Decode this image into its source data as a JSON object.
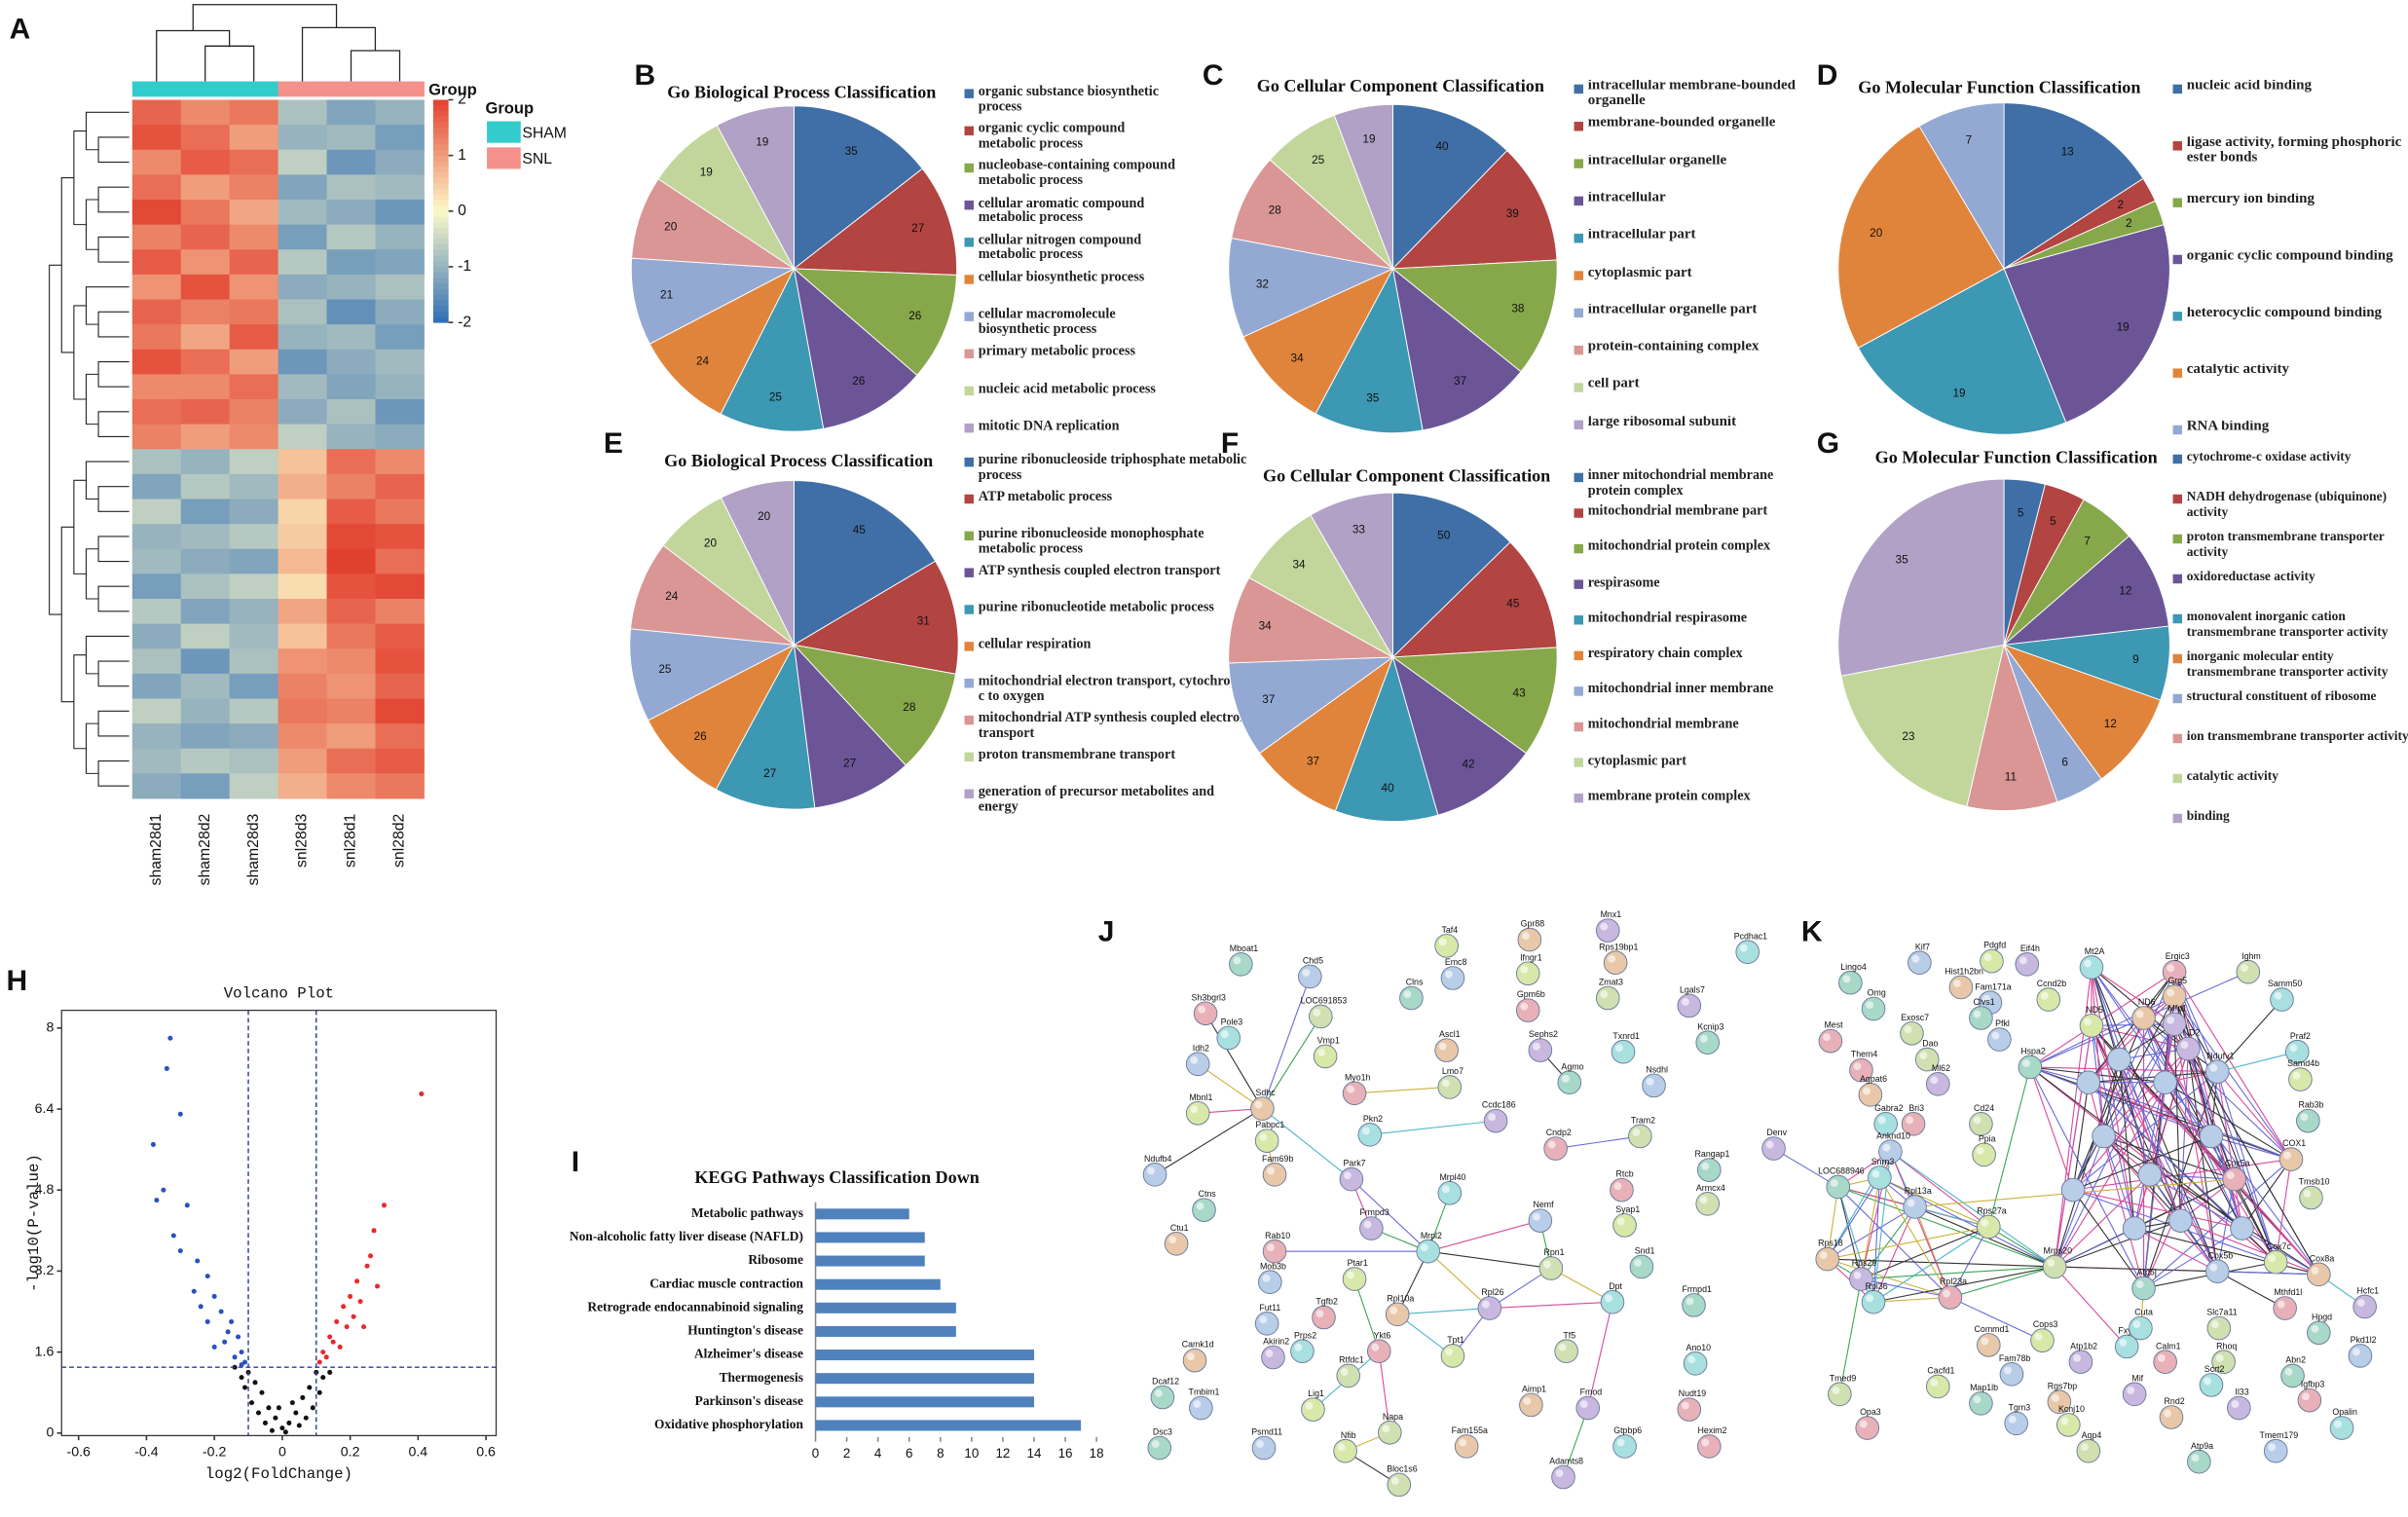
{
  "chart_data": [
    {
      "label": "A",
      "type": "heatmap",
      "colorbar_title": "Group",
      "legend_title": "Group",
      "groups": [
        {
          "name": "SHAM",
          "color": "#33cccc"
        },
        {
          "name": "SNL",
          "color": "#f4918a"
        }
      ],
      "column_groups": [
        0,
        0,
        0,
        1,
        1,
        1
      ],
      "columns": [
        "sham28d1",
        "sham28d2",
        "sham28d3",
        "snl28d3",
        "snl28d1",
        "snl28d2"
      ],
      "colormap": [
        "#2f6db4",
        "#fdf9c8",
        "#e2402f"
      ],
      "zlim": [
        -2,
        2
      ],
      "zticks": [
        2,
        1,
        0,
        -1,
        -2
      ],
      "values": [
        [
          1.6,
          1.2,
          1.4,
          -0.8,
          -1.2,
          -1.0
        ],
        [
          1.8,
          1.5,
          1.0,
          -1.0,
          -0.9,
          -1.3
        ],
        [
          1.2,
          1.7,
          1.5,
          -0.6,
          -1.4,
          -1.1
        ],
        [
          1.5,
          1.0,
          1.3,
          -1.2,
          -0.8,
          -0.9
        ],
        [
          1.9,
          1.4,
          0.9,
          -0.9,
          -1.1,
          -1.4
        ],
        [
          1.3,
          1.6,
          1.2,
          -1.3,
          -0.7,
          -1.0
        ],
        [
          1.7,
          1.1,
          1.6,
          -0.7,
          -1.3,
          -1.2
        ],
        [
          1.1,
          1.8,
          1.1,
          -1.1,
          -1.0,
          -0.8
        ],
        [
          1.6,
          1.3,
          1.4,
          -0.8,
          -1.5,
          -1.1
        ],
        [
          1.4,
          0.9,
          1.7,
          -1.0,
          -0.9,
          -1.3
        ],
        [
          1.8,
          1.5,
          1.0,
          -1.4,
          -1.1,
          -0.9
        ],
        [
          1.2,
          1.2,
          1.5,
          -0.9,
          -1.2,
          -1.0
        ],
        [
          1.5,
          1.6,
          1.3,
          -1.1,
          -0.8,
          -1.4
        ],
        [
          1.3,
          1.0,
          1.2,
          -0.6,
          -1.0,
          -1.1
        ],
        [
          -0.8,
          -1.0,
          -0.6,
          0.6,
          1.5,
          1.2
        ],
        [
          -1.2,
          -0.7,
          -0.9,
          0.8,
          1.3,
          1.6
        ],
        [
          -0.6,
          -1.3,
          -1.1,
          0.4,
          1.7,
          1.4
        ],
        [
          -1.0,
          -0.9,
          -0.7,
          0.5,
          1.9,
          1.8
        ],
        [
          -0.9,
          -1.1,
          -1.2,
          0.7,
          2.0,
          1.5
        ],
        [
          -1.3,
          -0.8,
          -0.6,
          0.3,
          1.8,
          1.9
        ],
        [
          -0.7,
          -1.2,
          -1.0,
          0.9,
          1.6,
          1.3
        ],
        [
          -1.1,
          -0.6,
          -0.9,
          0.6,
          1.4,
          1.7
        ],
        [
          -0.8,
          -1.4,
          -0.8,
          1.1,
          1.2,
          1.8
        ],
        [
          -1.2,
          -0.9,
          -1.3,
          1.3,
          1.1,
          1.6
        ],
        [
          -0.6,
          -1.0,
          -0.7,
          1.4,
          1.3,
          1.9
        ],
        [
          -1.0,
          -1.2,
          -1.1,
          1.2,
          1.0,
          1.5
        ],
        [
          -0.9,
          -0.7,
          -0.8,
          1.0,
          1.5,
          1.7
        ],
        [
          -1.1,
          -1.3,
          -0.6,
          0.8,
          1.2,
          1.4
        ]
      ]
    },
    {
      "label": "B",
      "type": "pie",
      "title": "Go Biological Process Classification",
      "categories": [
        "organic substance biosynthetic process",
        "organic cyclic compound metabolic process",
        "nucleobase-containing compound metabolic process",
        "cellular aromatic compound metabolic process",
        "cellular nitrogen compound metabolic process",
        "cellular biosynthetic process",
        "cellular macromolecule biosynthetic process",
        "primary metabolic process",
        "nucleic acid metabolic process",
        "mitotic DNA replication"
      ],
      "values": [
        35,
        27,
        26,
        26,
        25,
        24,
        21,
        20,
        19,
        19
      ],
      "colors": [
        "#3f6fa6",
        "#b24442",
        "#87a84a",
        "#6b5597",
        "#3c98b3",
        "#e1843b",
        "#93a9d3",
        "#d99695",
        "#c2d69b",
        "#b1a1c7"
      ]
    },
    {
      "label": "C",
      "type": "pie",
      "title": "Go Cellular Component Classification",
      "categories": [
        "intracellular membrane-bounded organelle",
        "membrane-bounded organelle",
        "intracellular organelle",
        "intracellular",
        "intracellular part",
        "cytoplasmic part",
        "intracellular organelle part",
        "protein-containing complex",
        "cell part",
        "large ribosomal subunit"
      ],
      "values": [
        40,
        39,
        38,
        37,
        35,
        34,
        32,
        28,
        25,
        19
      ],
      "colors": [
        "#3f6fa6",
        "#b24442",
        "#87a84a",
        "#6b5597",
        "#3c98b3",
        "#e1843b",
        "#93a9d3",
        "#d99695",
        "#c2d69b",
        "#b1a1c7"
      ]
    },
    {
      "label": "D",
      "type": "pie",
      "title": "Go Molecular Function Classification",
      "categories": [
        "nucleic acid binding",
        "ligase activity, forming phosphoric ester bonds",
        "mercury ion binding",
        "organic cyclic compound binding",
        "heterocyclic compound binding",
        "catalytic activity",
        "RNA binding"
      ],
      "values": [
        13,
        2,
        2,
        19,
        19,
        20,
        7
      ],
      "colors": [
        "#3f6fa6",
        "#b24442",
        "#87a84a",
        "#6b5597",
        "#3c98b3",
        "#e1843b",
        "#93a9d3"
      ]
    },
    {
      "label": "E",
      "type": "pie",
      "title": "Go Biological Process Classification",
      "categories": [
        "purine ribonucleoside triphosphate metabolic process",
        "ATP metabolic process",
        "purine ribonucleoside monophosphate metabolic process",
        "ATP synthesis coupled electron transport",
        "purine ribonucleotide metabolic process",
        "cellular respiration",
        "mitochondrial electron transport, cytochrome c to oxygen",
        "mitochondrial ATP synthesis coupled electron transport",
        "proton transmembrane transport",
        "generation of precursor metabolites and energy"
      ],
      "values": [
        45,
        31,
        28,
        27,
        27,
        26,
        25,
        24,
        20,
        20
      ],
      "colors": [
        "#3f6fa6",
        "#b24442",
        "#87a84a",
        "#6b5597",
        "#3c98b3",
        "#e1843b",
        "#93a9d3",
        "#d99695",
        "#c2d69b",
        "#b1a1c7"
      ]
    },
    {
      "label": "F",
      "type": "pie",
      "title": "Go Cellular Component Classification",
      "categories": [
        "inner mitochondrial membrane protein complex",
        "mitochondrial membrane part",
        "mitochondrial protein complex",
        "respirasome",
        "mitochondrial respirasome",
        "respiratory chain complex",
        "mitochondrial inner membrane",
        "mitochondrial membrane",
        "cytoplasmic part",
        "membrane protein complex"
      ],
      "values": [
        50,
        45,
        43,
        42,
        40,
        37,
        37,
        34,
        34,
        33
      ],
      "colors": [
        "#3f6fa6",
        "#b24442",
        "#87a84a",
        "#6b5597",
        "#3c98b3",
        "#e1843b",
        "#93a9d3",
        "#d99695",
        "#c2d69b",
        "#b1a1c7"
      ]
    },
    {
      "label": "G",
      "type": "pie",
      "title": "Go Molecular Function Classification",
      "categories": [
        "cytochrome-c oxidase activity",
        "NADH dehydrogenase (ubiquinone) activity",
        "proton transmembrane transporter activity",
        "oxidoreductase activity",
        "monovalent inorganic cation transmembrane transporter activity",
        "inorganic molecular entity transmembrane transporter activity",
        "structural constituent of ribosome",
        "ion transmembrane transporter activity",
        "catalytic activity",
        "binding"
      ],
      "values": [
        5,
        5,
        7,
        12,
        9,
        12,
        6,
        11,
        23,
        35
      ],
      "colors": [
        "#3f6fa6",
        "#b24442",
        "#87a84a",
        "#6b5597",
        "#3c98b3",
        "#e1843b",
        "#93a9d3",
        "#d99695",
        "#c2d69b",
        "#b1a1c7"
      ]
    },
    {
      "label": "H",
      "type": "scatter",
      "title": "Volcano Plot",
      "x_label": "log2(FoldChange)",
      "y_label": "-log10(P-value)",
      "xlim": [
        -0.65,
        0.63
      ],
      "ylim": [
        -0.05,
        8.35
      ],
      "xticks": [
        -0.6,
        -0.4,
        -0.2,
        0,
        0.2,
        0.4,
        0.6
      ],
      "yticks": [
        0,
        1.6,
        3.2,
        4.8,
        6.4,
        8
      ],
      "vlines": [
        -0.1,
        0.1
      ],
      "hline": 1.3,
      "series": [
        {
          "color": "#111111",
          "x": [
            -0.1,
            -0.08,
            -0.06,
            -0.04,
            -0.02,
            0,
            0.02,
            0.04,
            0.06,
            0.08,
            0.1,
            -0.12,
            0.12,
            -0.05,
            0.05,
            -0.03,
            0.03,
            -0.07,
            0.07,
            -0.09,
            0.09,
            0.01,
            -0.01,
            0.14,
            -0.14,
            -0.11,
            0.11
          ],
          "values": [
            1.2,
            1.0,
            0.8,
            0.5,
            0.3,
            0.1,
            0.2,
            0.4,
            0.7,
            0.9,
            1.2,
            1.1,
            1.1,
            0.2,
            0.15,
            0.05,
            0.6,
            0.4,
            0.3,
            0.6,
            0.5,
            0.02,
            0.5,
            1.2,
            1.3,
            0.9,
            0.8
          ]
        },
        {
          "color": "#2a52be",
          "x": [
            -0.33,
            -0.34,
            -0.3,
            -0.38,
            -0.37,
            -0.35,
            -0.28,
            -0.32,
            -0.3,
            -0.25,
            -0.22,
            -0.2,
            -0.26,
            -0.18,
            -0.15,
            -0.22,
            -0.13,
            -0.17,
            -0.12,
            -0.2,
            -0.11,
            -0.14,
            -0.24,
            -0.16,
            -0.12
          ],
          "values": [
            7.8,
            7.2,
            6.3,
            5.7,
            4.6,
            4.8,
            4.5,
            3.9,
            3.6,
            3.4,
            3.1,
            2.7,
            2.8,
            2.4,
            2.2,
            2.2,
            1.9,
            1.8,
            1.6,
            1.7,
            1.4,
            1.5,
            2.5,
            2.0,
            1.35
          ]
        },
        {
          "color": "#e8282f",
          "x": [
            0.41,
            0.3,
            0.27,
            0.25,
            0.22,
            0.26,
            0.2,
            0.18,
            0.23,
            0.16,
            0.14,
            0.19,
            0.12,
            0.13,
            0.11,
            0.15,
            0.21,
            0.17,
            0.28,
            0.24
          ],
          "values": [
            6.7,
            4.5,
            4.0,
            3.3,
            3.0,
            3.5,
            2.7,
            2.5,
            2.6,
            2.2,
            1.9,
            2.1,
            1.6,
            1.5,
            1.4,
            1.8,
            2.3,
            1.7,
            2.9,
            2.1
          ]
        }
      ]
    },
    {
      "label": "I",
      "type": "hbar",
      "title": "KEGG Pathways Classification  Down",
      "color": "#4f81bd",
      "categories": [
        "Metabolic pathways",
        "Non-alcoholic fatty liver disease (NAFLD)",
        "Ribosome",
        "Cardiac muscle contraction",
        "Retrograde endocannabinoid signaling",
        "Huntington's disease",
        "Alzheimer's disease",
        "Thermogenesis",
        "Parkinson's disease",
        "Oxidative phosphorylation"
      ],
      "values": [
        6,
        7,
        7,
        8,
        9,
        9,
        14,
        14,
        14,
        17
      ],
      "xlim": [
        0,
        18
      ],
      "xticks": [
        0,
        2,
        4,
        6,
        8,
        10,
        12,
        14,
        16,
        18
      ]
    }
  ],
  "networks": [
    {
      "label": "J",
      "nodes": [
        "Mboat1",
        "Chd5",
        "Taf4",
        "Gpr88",
        "Mnx1",
        "Pcdhac1",
        "Sh3bgrl3",
        "LOC691853",
        "Clns",
        "Emc8",
        "Ifngr1",
        "Rps19bp1",
        "Lgals7",
        "Pole3",
        "Gpm6b",
        "Zmat3",
        "Kcnip3",
        "Idh2",
        "Vmp1",
        "Ascl1",
        "Sephs2",
        "Txnrd1",
        "Myo1h",
        "Lmo7",
        "Agmo",
        "Nsdhl",
        "Mbnl1",
        "Sdhc",
        "Ccdc186",
        "Pkn2",
        "Cndp2",
        "Tram2",
        "Rangap1",
        "Ndufb4",
        "Pabpc1",
        "Fam69b",
        "Park7",
        "Mrpl40",
        "Rtcb",
        "Armcx4",
        "Ctns",
        "Nemf",
        "Syap1",
        "Ctu1",
        "Frmpd3",
        "Mrpl2",
        "Rab10",
        "Rpn1",
        "Snd1",
        "Mob3b",
        "Ptar1",
        "Rpl10a",
        "Rpl26",
        "Dpt",
        "Tgfb2",
        "Tf5",
        "Frmpd1",
        "Fut11",
        "Tpt1",
        "Camk1d",
        "Akirin2",
        "Prps2",
        "Ykt6",
        "Rtfdc1",
        "Dcaf12",
        "Tmbim1",
        "Lig1",
        "Aimp1",
        "Fmod",
        "Ano10",
        "Nudt19",
        "Napa",
        "Dsc3",
        "Psmd11",
        "Nfib",
        "Fam155a",
        "Adamts8",
        "Gtpbp6",
        "Hexim2",
        "Bloc1s6"
      ]
    },
    {
      "label": "K",
      "nodes": [
        "Lingo4",
        "Kif7",
        "Pdgfd",
        "Hist1h2bn",
        "Eif4h",
        "Mt2A",
        "Ergic3",
        "Ighm",
        "Omg",
        "Fam171a",
        "Ccnd2b",
        "Grg5",
        "Mfp1",
        "Samm50",
        "Mest",
        "Exosc7",
        "Clvs1",
        "Pfkl",
        "ND5",
        "ND6",
        "ND2",
        "Praf2",
        "Them4",
        "Dao",
        "Hspa2",
        "Ndufv1",
        "Samd4b",
        "Agpat6",
        "Ml62",
        "Gabra2",
        "Bri3",
        "Cd24",
        "Rab3b",
        "Anknd10",
        "Ppia",
        "COX1",
        "Denv",
        "Snrn3",
        "Cox5a",
        "Tmsb10",
        "LOC688946",
        "Rpl13a",
        "Rps27a",
        "Rps18",
        "Rps29",
        "Rpl36",
        "Rpl23a",
        "Mrps20",
        "Atp5j",
        "Cox5b",
        "Cox7c",
        "Cox8a",
        "Hcfc1",
        "Fxyd7",
        "Mthfd1l",
        "Slc7a11",
        "Hpgd",
        "Pkd1l2",
        "Cops3",
        "Commd1",
        "Atp1b2",
        "Cuta",
        "Calm1",
        "Rhoq",
        "Abn2",
        "Fam78b",
        "Cacfd1",
        "Rgs7bp",
        "Mif",
        "Scrt2",
        "Igfbp3",
        "Tmed9",
        "Map1lb",
        "Tgm3",
        "Kcnj10",
        "Rnd2",
        "Il33",
        "Opalin",
        "Opa3",
        "Aqp4",
        "Atp9a",
        "Tmem179"
      ]
    }
  ]
}
